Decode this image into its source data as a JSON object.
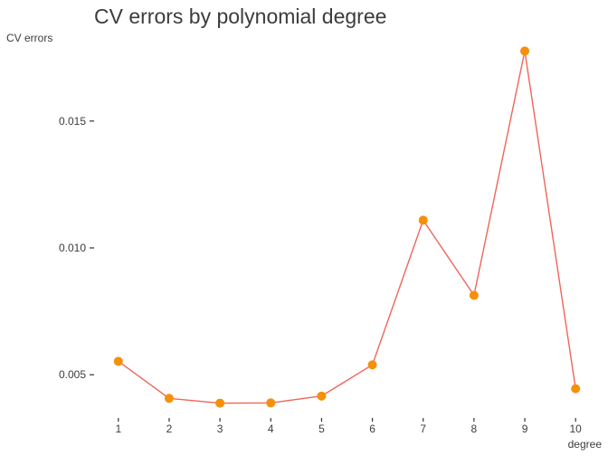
{
  "chart_data": {
    "type": "line",
    "title": "CV errors by polynomial degree",
    "xlabel": "degree",
    "ylabel": "CV errors",
    "x": [
      1,
      2,
      3,
      4,
      5,
      6,
      7,
      8,
      9,
      10
    ],
    "series": [
      {
        "values": [
          0.00553,
          0.00407,
          0.00388,
          0.00389,
          0.00416,
          0.00539,
          0.01109,
          0.00813,
          0.01776,
          0.00445
        ]
      }
    ],
    "x_ticks": [
      "1",
      "2",
      "3",
      "4",
      "5",
      "6",
      "7",
      "8",
      "9",
      "10"
    ],
    "y_ticks": [
      "0.005",
      "0.010",
      "0.015"
    ],
    "x_tick_values": [
      1,
      2,
      3,
      4,
      5,
      6,
      7,
      8,
      9,
      10
    ],
    "y_tick_values": [
      0.005,
      0.01,
      0.015
    ],
    "xlim": [
      0.95,
      10.05
    ],
    "ylim": [
      0.00333,
      0.01831
    ],
    "grid": false,
    "legend": "none",
    "line_color": "#f0655a",
    "point_color": "#f5900a"
  }
}
